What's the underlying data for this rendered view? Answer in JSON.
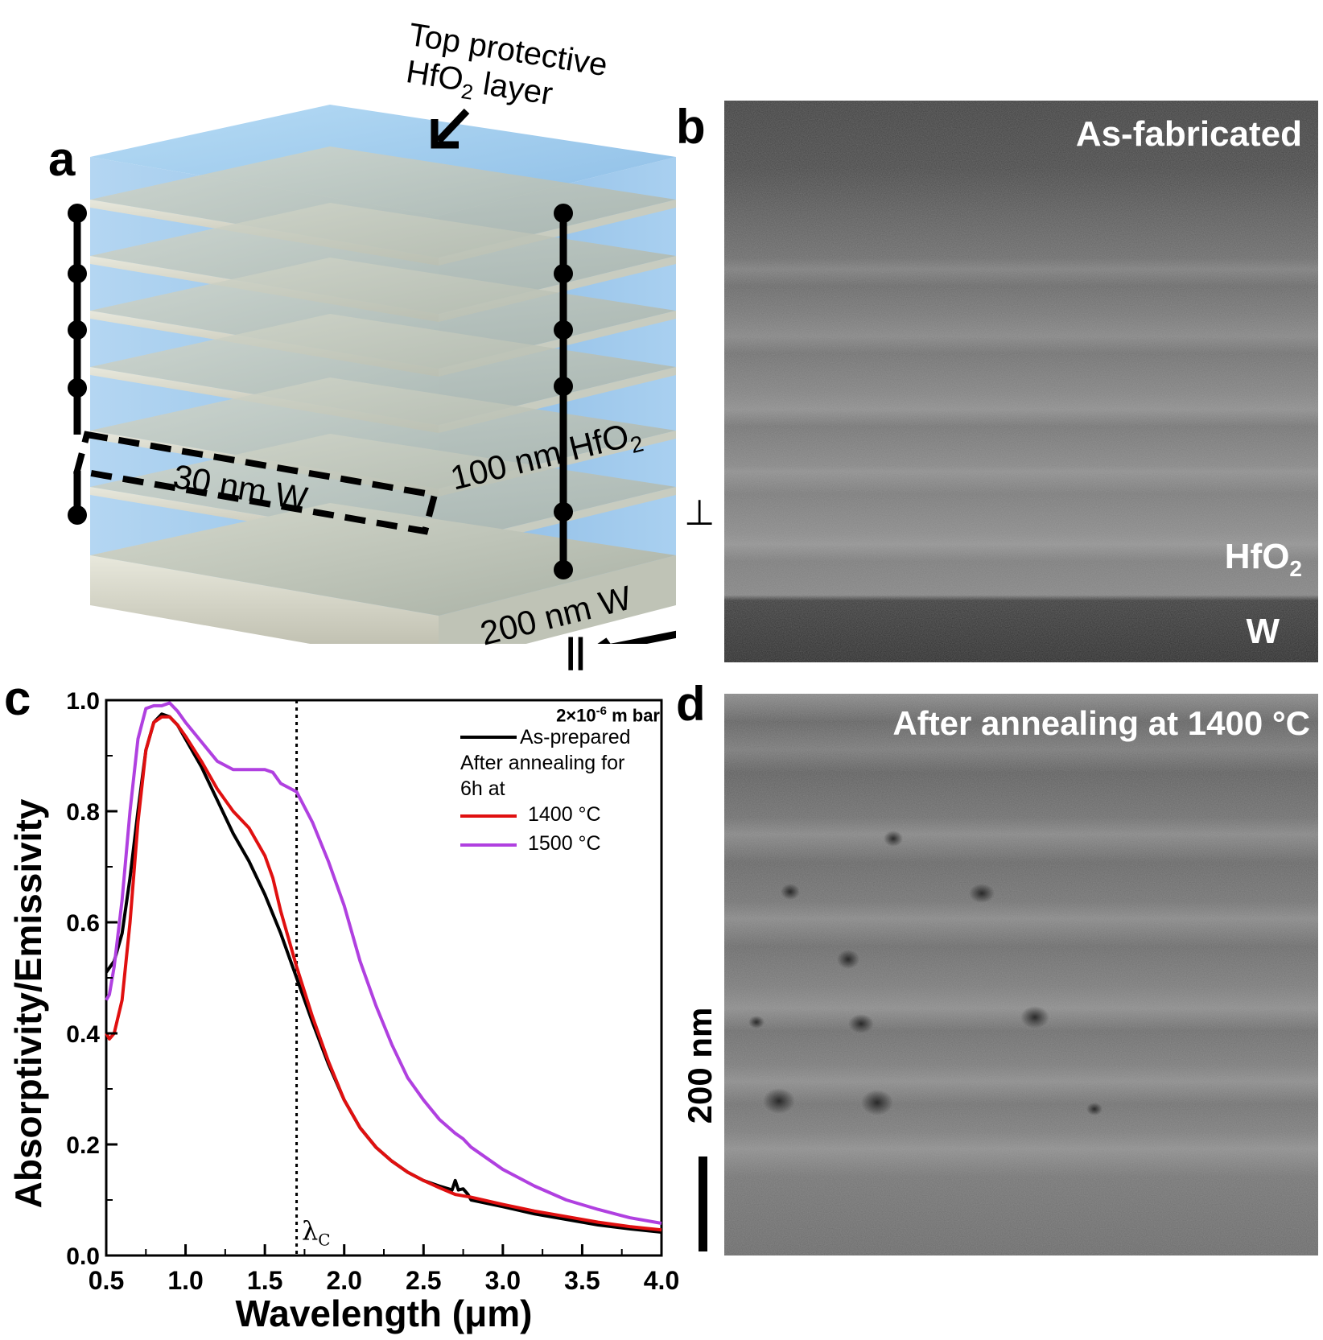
{
  "panels": {
    "a": {
      "letter": "a",
      "top_label_line1": "Top protective",
      "top_label_line2_pre": "HfO",
      "top_label_line2_sub": "2",
      "top_label_line2_post": " layer",
      "hfo2_label_pre": "100 nm HfO",
      "hfo2_label_sub": "2",
      "w_label": "30 nm W",
      "substrate_label": "200 nm W",
      "perp_symbol": "⊥",
      "parallel_symbol": "||"
    },
    "b": {
      "letter": "b",
      "title": "As-fabricated",
      "hfo2_pre": "HfO",
      "hfo2_sub": "2",
      "w_label": "W"
    },
    "c": {
      "letter": "c",
      "legend_pressure_pre": "2×10",
      "legend_pressure_sup": "-6",
      "legend_pressure_post": " m bar",
      "legend_asprepared": "As-prepared",
      "legend_after_line1": "After annealing for",
      "legend_after_line2": "6h at",
      "legend_1400": "1400 °C",
      "legend_1500": "1500 °C",
      "lambda_label": "λ",
      "lambda_sub": "C"
    },
    "d": {
      "letter": "d",
      "title": "After annealing at 1400 °C",
      "scale_label": "200 nm"
    }
  },
  "colors": {
    "as_prepared": "#000000",
    "c1400": "#e01010",
    "c1500": "#b040e0",
    "hfo2_blue": "#9ec8ec",
    "w_layer": "#c8c8b8"
  },
  "chart_data": {
    "type": "line",
    "xlabel": "Wavelength (μm)",
    "ylabel": "Absorptivity/Emissivity",
    "xlim": [
      0.5,
      4.0
    ],
    "ylim": [
      0.0,
      1.0
    ],
    "xticks": [
      "0.5",
      "1.0",
      "1.5",
      "2.0",
      "2.5",
      "3.0",
      "3.5",
      "4.0"
    ],
    "yticks": [
      "0.0",
      "0.2",
      "0.4",
      "0.6",
      "0.8",
      "1.0"
    ],
    "xtick_values": [
      0.5,
      1.0,
      1.5,
      2.0,
      2.5,
      3.0,
      3.5,
      4.0
    ],
    "ytick_values": [
      0.0,
      0.2,
      0.4,
      0.6,
      0.8,
      1.0
    ],
    "vline_x": 1.7,
    "legend_position": "top-right",
    "series": [
      {
        "name": "As-prepared",
        "color": "#000000",
        "x": [
          0.5,
          0.55,
          0.6,
          0.65,
          0.7,
          0.75,
          0.8,
          0.85,
          0.9,
          0.95,
          1.0,
          1.1,
          1.2,
          1.3,
          1.4,
          1.5,
          1.6,
          1.7,
          1.8,
          1.9,
          2.0,
          2.1,
          2.2,
          2.3,
          2.4,
          2.5,
          2.6,
          2.68,
          2.7,
          2.72,
          2.75,
          2.78,
          2.8,
          3.0,
          3.2,
          3.4,
          3.6,
          3.8,
          4.0
        ],
        "y": [
          0.51,
          0.53,
          0.58,
          0.68,
          0.8,
          0.91,
          0.96,
          0.975,
          0.97,
          0.955,
          0.93,
          0.88,
          0.82,
          0.76,
          0.71,
          0.65,
          0.58,
          0.5,
          0.42,
          0.345,
          0.28,
          0.23,
          0.195,
          0.17,
          0.15,
          0.135,
          0.125,
          0.118,
          0.135,
          0.118,
          0.12,
          0.11,
          0.1,
          0.088,
          0.075,
          0.065,
          0.055,
          0.048,
          0.042
        ]
      },
      {
        "name": "1400 °C",
        "color": "#e01010",
        "x": [
          0.5,
          0.52,
          0.55,
          0.6,
          0.65,
          0.7,
          0.75,
          0.8,
          0.85,
          0.9,
          0.95,
          1.0,
          1.1,
          1.2,
          1.3,
          1.4,
          1.5,
          1.55,
          1.6,
          1.7,
          1.8,
          1.9,
          2.0,
          2.1,
          2.2,
          2.3,
          2.4,
          2.5,
          2.6,
          2.7,
          2.8,
          3.0,
          3.2,
          3.4,
          3.6,
          3.8,
          4.0
        ],
        "y": [
          0.4,
          0.39,
          0.4,
          0.46,
          0.6,
          0.78,
          0.91,
          0.96,
          0.97,
          0.97,
          0.955,
          0.935,
          0.89,
          0.84,
          0.8,
          0.77,
          0.72,
          0.68,
          0.62,
          0.52,
          0.43,
          0.35,
          0.28,
          0.23,
          0.195,
          0.17,
          0.15,
          0.135,
          0.122,
          0.11,
          0.105,
          0.092,
          0.08,
          0.07,
          0.06,
          0.052,
          0.046
        ]
      },
      {
        "name": "1500 °C",
        "color": "#b040e0",
        "x": [
          0.5,
          0.52,
          0.55,
          0.6,
          0.65,
          0.7,
          0.75,
          0.8,
          0.85,
          0.9,
          0.95,
          1.0,
          1.1,
          1.2,
          1.3,
          1.4,
          1.5,
          1.55,
          1.6,
          1.7,
          1.8,
          1.9,
          2.0,
          2.1,
          2.2,
          2.3,
          2.4,
          2.5,
          2.6,
          2.7,
          2.75,
          2.8,
          3.0,
          3.2,
          3.4,
          3.6,
          3.8,
          4.0
        ],
        "y": [
          0.46,
          0.47,
          0.52,
          0.64,
          0.8,
          0.93,
          0.985,
          0.99,
          0.99,
          0.995,
          0.98,
          0.96,
          0.925,
          0.89,
          0.875,
          0.875,
          0.875,
          0.87,
          0.85,
          0.835,
          0.78,
          0.71,
          0.63,
          0.53,
          0.45,
          0.38,
          0.32,
          0.28,
          0.245,
          0.22,
          0.21,
          0.195,
          0.155,
          0.125,
          0.1,
          0.083,
          0.068,
          0.058
        ]
      }
    ]
  }
}
